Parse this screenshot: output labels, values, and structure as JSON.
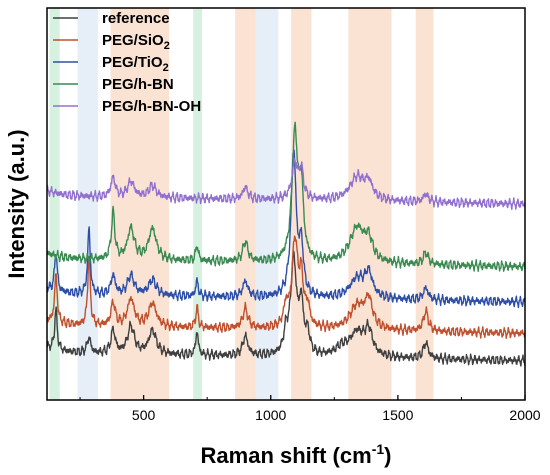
{
  "chart_data": {
    "type": "line",
    "xlabel": "Raman shift (cm",
    "xlabel_sup": "-1",
    "xlabel_tail": ")",
    "ylabel": "Intensity (a.u.)",
    "xlim": [
      120,
      2000
    ],
    "ylim": [
      0,
      1
    ],
    "x_ticks": [
      {
        "value": 500,
        "label": "500"
      },
      {
        "value": 1000,
        "label": "1000"
      },
      {
        "value": 1500,
        "label": "1500"
      },
      {
        "value": 2000,
        "label": "2000"
      }
    ],
    "y_ticks": false,
    "grid": false,
    "legend": "top-left",
    "highlight_bands": [
      {
        "from": 130,
        "to": 170,
        "color": "#c8ecd4"
      },
      {
        "from": 240,
        "to": 320,
        "color": "#dde8f6"
      },
      {
        "from": 370,
        "to": 600,
        "color": "#fad9c4"
      },
      {
        "from": 695,
        "to": 730,
        "color": "#c8ecd4"
      },
      {
        "from": 860,
        "to": 940,
        "color": "#fad9c4"
      },
      {
        "from": 940,
        "to": 1030,
        "color": "#dde8f6"
      },
      {
        "from": 1080,
        "to": 1160,
        "color": "#fad9c4"
      },
      {
        "from": 1305,
        "to": 1475,
        "color": "#fad9c4"
      },
      {
        "from": 1570,
        "to": 1640,
        "color": "#fad9c4"
      }
    ],
    "series": [
      {
        "name": "reference",
        "name_sub": "",
        "color": "#404040",
        "baseline": 0.12,
        "peaks": [
          [
            155,
            0.1,
            6
          ],
          [
            285,
            0.04,
            8
          ],
          [
            380,
            0.06,
            10
          ],
          [
            450,
            0.07,
            16
          ],
          [
            535,
            0.06,
            18
          ],
          [
            710,
            0.06,
            6
          ],
          [
            900,
            0.05,
            12
          ],
          [
            1060,
            0.05,
            10
          ],
          [
            1090,
            0.24,
            14
          ],
          [
            1120,
            0.12,
            10
          ],
          [
            1145,
            0.05,
            10
          ],
          [
            1280,
            0.02,
            30
          ],
          [
            1340,
            0.06,
            35
          ],
          [
            1385,
            0.06,
            18
          ],
          [
            1610,
            0.04,
            12
          ]
        ]
      },
      {
        "name": "PEG/SiO",
        "name_sub": "2",
        "color": "#c0502e",
        "baseline": 0.19,
        "peaks": [
          [
            155,
            0.12,
            6
          ],
          [
            285,
            0.18,
            6
          ],
          [
            380,
            0.06,
            10
          ],
          [
            450,
            0.07,
            16
          ],
          [
            535,
            0.06,
            18
          ],
          [
            710,
            0.05,
            6
          ],
          [
            900,
            0.05,
            12
          ],
          [
            1060,
            0.05,
            10
          ],
          [
            1095,
            0.22,
            14
          ],
          [
            1120,
            0.11,
            10
          ],
          [
            1145,
            0.05,
            10
          ],
          [
            1340,
            0.06,
            35
          ],
          [
            1385,
            0.07,
            18
          ],
          [
            1610,
            0.05,
            12
          ]
        ]
      },
      {
        "name": "PEG/TiO",
        "name_sub": "2",
        "color": "#2e4fa8",
        "baseline": 0.27,
        "peaks": [
          [
            155,
            0.1,
            6
          ],
          [
            285,
            0.17,
            6
          ],
          [
            380,
            0.05,
            10
          ],
          [
            450,
            0.05,
            16
          ],
          [
            535,
            0.04,
            18
          ],
          [
            710,
            0.04,
            6
          ],
          [
            900,
            0.04,
            12
          ],
          [
            1090,
            0.37,
            12
          ],
          [
            1120,
            0.12,
            10
          ],
          [
            1340,
            0.05,
            35
          ],
          [
            1385,
            0.06,
            18
          ],
          [
            1610,
            0.03,
            12
          ]
        ]
      },
      {
        "name": "PEG/h-BN",
        "name_sub": "",
        "color": "#3a8a52",
        "baseline": 0.36,
        "peaks": [
          [
            380,
            0.12,
            8
          ],
          [
            450,
            0.08,
            16
          ],
          [
            535,
            0.08,
            18
          ],
          [
            710,
            0.04,
            6
          ],
          [
            900,
            0.05,
            12
          ],
          [
            1095,
            0.32,
            14
          ],
          [
            1120,
            0.17,
            10
          ],
          [
            1340,
            0.09,
            35
          ],
          [
            1385,
            0.05,
            18
          ],
          [
            1610,
            0.03,
            12
          ]
        ]
      },
      {
        "name": "PEG/h-BN-OH",
        "name_sub": "",
        "color": "#9270d0",
        "baseline": 0.52,
        "peaks": [
          [
            380,
            0.05,
            10
          ],
          [
            450,
            0.04,
            16
          ],
          [
            535,
            0.03,
            18
          ],
          [
            900,
            0.03,
            12
          ],
          [
            1095,
            0.09,
            14
          ],
          [
            1120,
            0.07,
            10
          ],
          [
            1340,
            0.06,
            35
          ],
          [
            1385,
            0.04,
            18
          ],
          [
            1610,
            0.02,
            12
          ]
        ]
      }
    ]
  }
}
